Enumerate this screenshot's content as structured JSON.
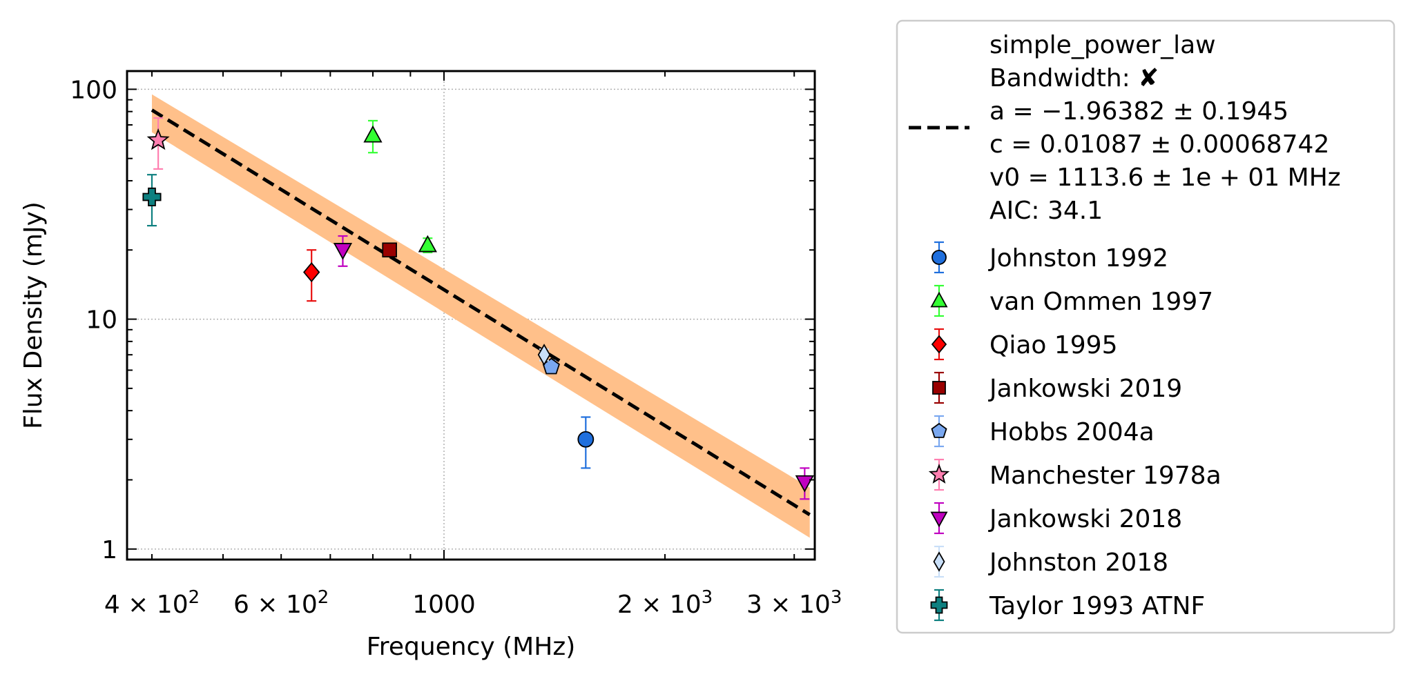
{
  "chart_data": {
    "type": "scatter",
    "xlabel": "Frequency (MHz)",
    "ylabel": "Flux Density (mJy)",
    "xscale": "log",
    "yscale": "log",
    "xlim": [
      370,
      3200
    ],
    "ylim": [
      0.9,
      120
    ],
    "grid": true,
    "legend_placement": "outside-right",
    "x_tick_labels": [
      {
        "value": 400,
        "mantissa": "4",
        "exp": "2",
        "times": "×",
        "base": "10"
      },
      {
        "value": 600,
        "mantissa": "6",
        "exp": "2",
        "times": "×",
        "base": "10"
      },
      {
        "value": 1000,
        "text": "1000"
      },
      {
        "value": 2000,
        "mantissa": "2",
        "exp": "3",
        "times": "×",
        "base": "10"
      },
      {
        "value": 3000,
        "mantissa": "3",
        "exp": "3",
        "times": "×",
        "base": "10"
      }
    ],
    "y_tick_labels": [
      {
        "value": 1,
        "text": "1"
      },
      {
        "value": 10,
        "text": "10"
      },
      {
        "value": 100,
        "text": "100"
      }
    ],
    "fit": {
      "legend_lines": [
        "simple_power_law",
        "Bandwidth: ✘",
        "a = −1.96382 ± 0.1945",
        "c = 0.01087 ± 0.00068742",
        "v0 = 1113.6 ± 1e + 01 MHz",
        "AIC: 34.1"
      ],
      "model": "simple_power_law",
      "a": -1.96382,
      "c": 0.01087,
      "v0": 1113.6,
      "x_range": [
        400,
        3150
      ],
      "band": {
        "x": [
          400,
          3150
        ],
        "upper": [
          95,
          1.85
        ],
        "lower": [
          65,
          1.12
        ]
      },
      "line_color": "#000000",
      "band_color": "#ffc08a"
    },
    "series": [
      {
        "name": "Johnston 1992",
        "marker": "circle",
        "color": "#1f6fdd",
        "ecolor": "#1f6fdd",
        "points": [
          {
            "x": 1560,
            "y": 3.0,
            "ylo": 2.25,
            "yhi": 3.75
          }
        ]
      },
      {
        "name": "van Ommen 1997",
        "marker": "triangle-up",
        "color": "#33ff33",
        "ecolor": "#33ff33",
        "points": [
          {
            "x": 800,
            "y": 63,
            "ylo": 53,
            "yhi": 73
          },
          {
            "x": 950,
            "y": 21,
            "ylo": 19.5,
            "yhi": 22.5
          }
        ]
      },
      {
        "name": "Qiao 1995",
        "marker": "diamond",
        "color": "#ff0000",
        "ecolor": "#e81010",
        "points": [
          {
            "x": 660,
            "y": 16,
            "ylo": 12,
            "yhi": 20
          }
        ]
      },
      {
        "name": "Jankowski 2019",
        "marker": "square",
        "color": "#990000",
        "ecolor": "#990000",
        "points": [
          {
            "x": 843,
            "y": 20,
            "ylo": 19.2,
            "yhi": 20.8
          }
        ]
      },
      {
        "name": "Hobbs 2004a",
        "marker": "pentagon",
        "color": "#7aa8f0",
        "ecolor": "#7aa8f0",
        "points": [
          {
            "x": 1400,
            "y": 6.2,
            "ylo": 5.8,
            "yhi": 6.6
          }
        ]
      },
      {
        "name": "Manchester 1978a",
        "marker": "star",
        "color": "#ff7fb0",
        "ecolor": "#ff7fb0",
        "points": [
          {
            "x": 408,
            "y": 60,
            "ylo": 45,
            "yhi": 75
          }
        ]
      },
      {
        "name": "Jankowski 2018",
        "marker": "triangle-down",
        "color": "#c000c0",
        "ecolor": "#c000c0",
        "points": [
          {
            "x": 728,
            "y": 20,
            "ylo": 17,
            "yhi": 23
          },
          {
            "x": 3100,
            "y": 1.95,
            "ylo": 1.65,
            "yhi": 2.25
          }
        ]
      },
      {
        "name": "Johnston 2018",
        "marker": "thin-diamond",
        "color": "#c9dff8",
        "ecolor": "#c9dff8",
        "points": [
          {
            "x": 1369,
            "y": 7.0,
            "ylo": 6.6,
            "yhi": 7.4
          }
        ]
      },
      {
        "name": "Taylor 1993 ATNF",
        "marker": "plus",
        "color": "#0e8080",
        "ecolor": "#0e8080",
        "points": [
          {
            "x": 400,
            "y": 34,
            "ylo": 25.5,
            "yhi": 42.5
          }
        ]
      }
    ]
  }
}
